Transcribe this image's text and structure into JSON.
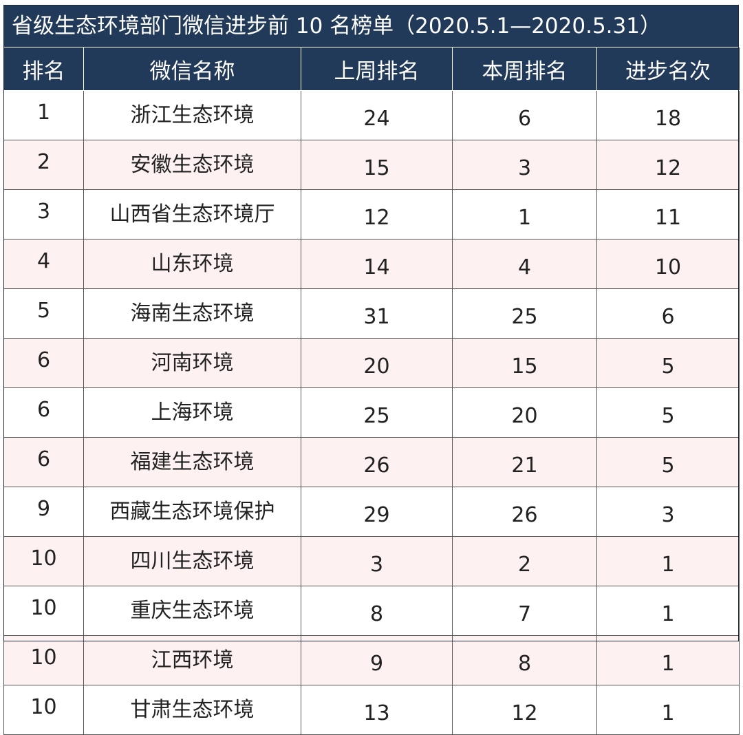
{
  "title": "省级生态环境部门微信进步前 10 名榜单（2020.5.1—2020.5.31）",
  "columns": [
    "排名",
    "微信名称",
    "上周排名",
    "本周排名",
    "进步名次"
  ],
  "rows": [
    {
      "rank": "1",
      "name": "浙江生态环境",
      "last_week": "24",
      "this_week": "6",
      "progress": "18"
    },
    {
      "rank": "2",
      "name": "安徽生态环境",
      "last_week": "15",
      "this_week": "3",
      "progress": "12"
    },
    {
      "rank": "3",
      "name": "山西省生态环境厅",
      "last_week": "12",
      "this_week": "1",
      "progress": "11"
    },
    {
      "rank": "4",
      "name": "山东环境",
      "last_week": "14",
      "this_week": "4",
      "progress": "10"
    },
    {
      "rank": "5",
      "name": "海南生态环境",
      "last_week": "31",
      "this_week": "25",
      "progress": "6"
    },
    {
      "rank": "6",
      "name": "河南环境",
      "last_week": "20",
      "this_week": "15",
      "progress": "5"
    },
    {
      "rank": "6",
      "name": "上海环境",
      "last_week": "25",
      "this_week": "20",
      "progress": "5"
    },
    {
      "rank": "6",
      "name": "福建生态环境",
      "last_week": "26",
      "this_week": "21",
      "progress": "5"
    },
    {
      "rank": "9",
      "name": "西藏生态环境保护",
      "last_week": "29",
      "this_week": "26",
      "progress": "3"
    },
    {
      "rank": "10",
      "name": "四川生态环境",
      "last_week": "3",
      "this_week": "2",
      "progress": "1"
    },
    {
      "rank": "10",
      "name": "重庆生态环境",
      "last_week": "8",
      "this_week": "7",
      "progress": "1"
    },
    {
      "rank": "10",
      "name": "江西环境",
      "last_week": "9",
      "this_week": "8",
      "progress": "1"
    },
    {
      "rank": "10",
      "name": "甘肃生态环境",
      "last_week": "13",
      "this_week": "12",
      "progress": "1"
    }
  ],
  "colors": {
    "header_bg": "#223a59",
    "header_text": "#ffffff",
    "stripe_bg": "#fdf1f2",
    "row_bg": "#ffffff",
    "grid": "#555555"
  }
}
